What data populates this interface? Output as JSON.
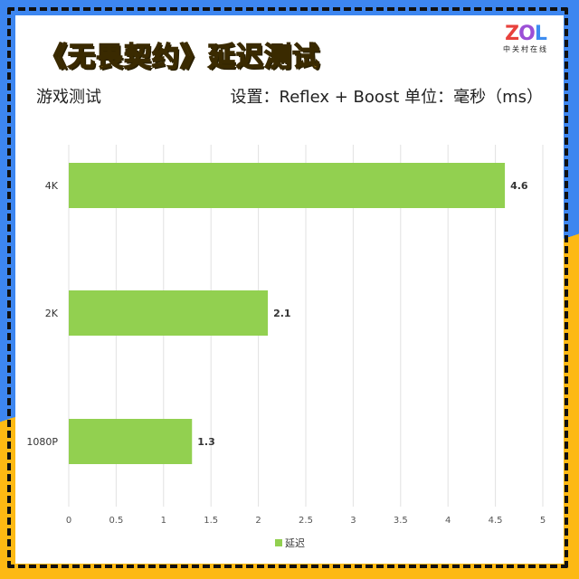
{
  "header": {
    "title": "《无畏契约》延迟测试",
    "left_label": "游戏测试",
    "right_label": "设置：Reflex + Boost  单位：毫秒（ms）"
  },
  "logo": {
    "text": "ZOL",
    "subtitle": "中关村在线"
  },
  "chart_data": {
    "type": "bar",
    "orientation": "horizontal",
    "categories": [
      "4K",
      "2K",
      "1080P"
    ],
    "series": [
      {
        "name": "延迟",
        "values": [
          4.6,
          2.1,
          1.3
        ],
        "color": "#92d050"
      }
    ],
    "xlim": [
      0,
      5
    ],
    "xticks": [
      "0",
      "0.5",
      "1",
      "1.5",
      "2",
      "2.5",
      "3",
      "3.5",
      "4",
      "4.5",
      "5"
    ],
    "data_labels": [
      "4.6",
      "2.1",
      "1.3"
    ],
    "grid": true,
    "legend": "bottom"
  }
}
